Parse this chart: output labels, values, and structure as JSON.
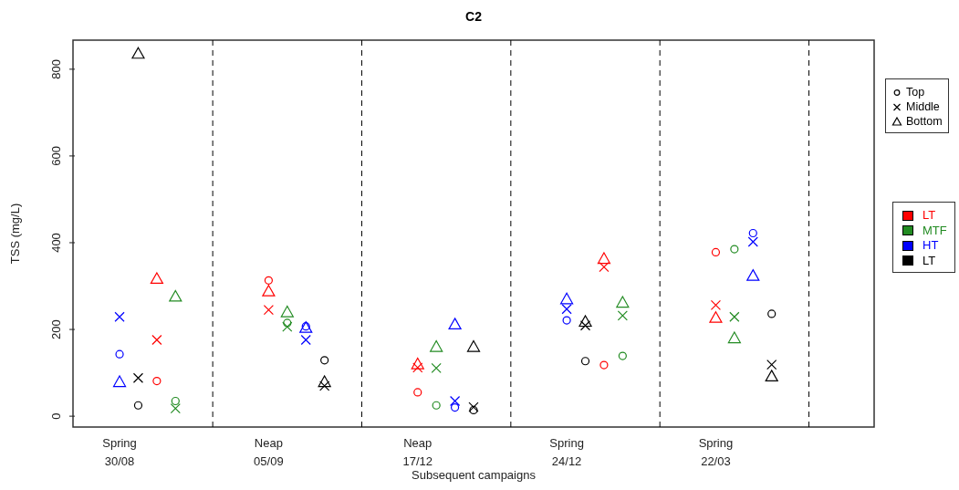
{
  "chart_data": {
    "type": "scatter",
    "title": "C2",
    "xlabel": "Subsequent campaigns",
    "ylabel": "TSS (mg/L)",
    "categories": [
      null,
      null,
      "Spring\n30/08",
      null,
      null,
      null,
      null,
      null,
      null,
      null,
      "Neap\n05/09",
      null,
      null,
      null,
      null,
      null,
      null,
      null,
      "Neap\n17/12",
      null,
      null,
      null,
      null,
      null,
      null,
      null,
      "Spring\n24/12",
      null,
      null,
      null,
      null,
      null,
      null,
      null,
      "Spring\n22/03",
      null,
      null,
      null,
      null,
      null,
      null,
      null,
      null
    ],
    "ylim": [
      -25,
      867
    ],
    "yticks": [
      0,
      200,
      400,
      600,
      800
    ],
    "grid": "x",
    "legend": "right",
    "annotations": [
      "LT",
      "MTF",
      "HT",
      "LT"
    ],
    "series": [
      {
        "name": "Top",
        "marker": "circle",
        "values": [
          null,
          null,
          143,
          25,
          81,
          35,
          null,
          null,
          null,
          null,
          313,
          215,
          207,
          129,
          null,
          null,
          null,
          null,
          55,
          25,
          20,
          14,
          null,
          null,
          null,
          null,
          221,
          127,
          118,
          139,
          null,
          null,
          null,
          null,
          378,
          385,
          422,
          236,
          null,
          null,
          null,
          null,
          null
        ],
        "colors": [
          null,
          null,
          "#0000ff",
          "#000000",
          "#ff0000",
          "#228b22",
          null,
          null,
          null,
          null,
          "#ff0000",
          "#228b22",
          "#0000ff",
          "#000000",
          null,
          null,
          null,
          null,
          "#ff0000",
          "#228b22",
          "#0000ff",
          "#000000",
          null,
          null,
          null,
          null,
          "#0000ff",
          "#000000",
          "#ff0000",
          "#228b22",
          null,
          null,
          null,
          null,
          "#ff0000",
          "#228b22",
          "#0000ff",
          "#000000",
          null,
          null,
          null,
          null,
          null
        ]
      },
      {
        "name": "Middle",
        "marker": "cross",
        "values": [
          null,
          null,
          229,
          88,
          176,
          18,
          null,
          null,
          null,
          null,
          245,
          206,
          176,
          70,
          null,
          null,
          null,
          null,
          112,
          111,
          35,
          21,
          null,
          null,
          null,
          null,
          247,
          209,
          344,
          232,
          null,
          null,
          null,
          null,
          256,
          229,
          402,
          119,
          null,
          null,
          null,
          null,
          null
        ],
        "colors": [
          null,
          null,
          "#0000ff",
          "#000000",
          "#ff0000",
          "#228b22",
          null,
          null,
          null,
          null,
          "#ff0000",
          "#228b22",
          "#0000ff",
          "#000000",
          null,
          null,
          null,
          null,
          "#ff0000",
          "#228b22",
          "#0000ff",
          "#000000",
          null,
          null,
          null,
          null,
          "#0000ff",
          "#000000",
          "#ff0000",
          "#228b22",
          null,
          null,
          null,
          null,
          "#ff0000",
          "#228b22",
          "#0000ff",
          "#000000",
          null,
          null,
          null,
          null,
          null
        ]
      },
      {
        "name": "Bottom",
        "marker": "triangle",
        "values": [
          null,
          null,
          79,
          836,
          317,
          276,
          null,
          null,
          null,
          null,
          288,
          240,
          204,
          79,
          null,
          null,
          null,
          null,
          120,
          160,
          212,
          160,
          null,
          null,
          null,
          null,
          270,
          218,
          363,
          262,
          null,
          null,
          null,
          null,
          227,
          180,
          324,
          92,
          null,
          null,
          null,
          null,
          null
        ],
        "colors": [
          null,
          null,
          "#0000ff",
          "#000000",
          "#ff0000",
          "#228b22",
          null,
          null,
          null,
          null,
          "#ff0000",
          "#228b22",
          "#0000ff",
          "#000000",
          null,
          null,
          null,
          null,
          "#ff0000",
          "#228b22",
          "#0000ff",
          "#000000",
          null,
          null,
          null,
          null,
          "#0000ff",
          "#000000",
          "#ff0000",
          "#228b22",
          null,
          null,
          null,
          null,
          "#ff0000",
          "#228b22",
          "#0000ff",
          "#000000",
          null,
          null,
          null,
          null,
          null
        ]
      }
    ]
  }
}
